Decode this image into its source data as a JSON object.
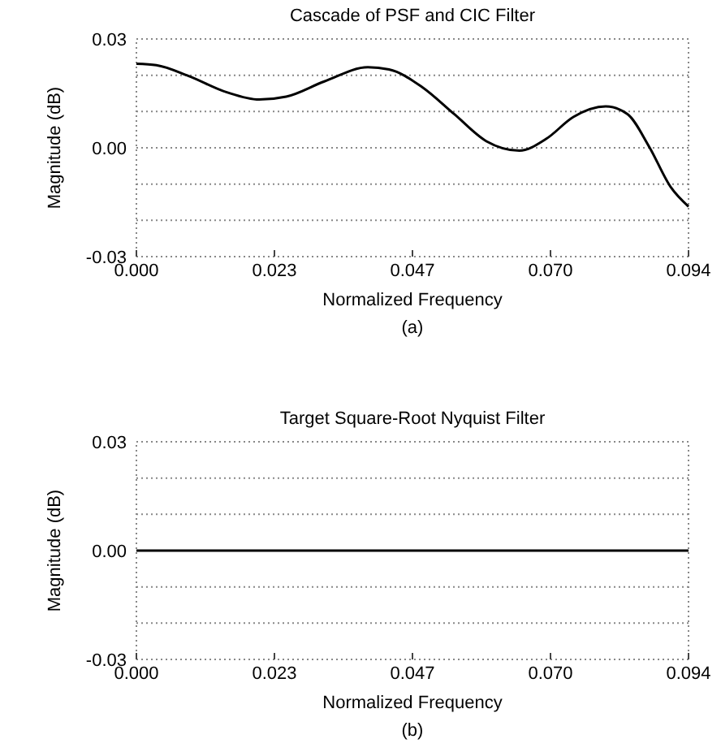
{
  "chart_data": [
    {
      "type": "line",
      "title": "Cascade of PSF and CIC Filter",
      "xlabel": "Normalized Frequency",
      "ylabel": "Magnitude (dB)",
      "annotations": [
        "(a)"
      ],
      "xlim": [
        0,
        0.094
      ],
      "ylim": [
        -0.03,
        0.03
      ],
      "xticks": [
        {
          "value": 0,
          "label": "0.000"
        },
        {
          "value": 0.0235,
          "label": "0.023"
        },
        {
          "value": 0.047,
          "label": "0.047"
        },
        {
          "value": 0.0705,
          "label": "0.070"
        },
        {
          "value": 0.094,
          "label": "0.094"
        }
      ],
      "yticks": [
        {
          "value": -0.03,
          "label": "-0.03"
        },
        {
          "value": -0.02,
          "label": null
        },
        {
          "value": -0.01,
          "label": null
        },
        {
          "value": 0,
          "label": "0.00"
        },
        {
          "value": 0.01,
          "label": null
        },
        {
          "value": 0.02,
          "label": null
        },
        {
          "value": 0.03,
          "label": "0.03"
        }
      ],
      "grid": "y",
      "line_style": "solid",
      "series": [
        {
          "color": "#000000",
          "x": [
            0,
            0.0034,
            0.0089,
            0.0154,
            0.0209,
            0.0255,
            0.032,
            0.0394,
            0.043,
            0.0486,
            0.0541,
            0.0596,
            0.0652,
            0.0698,
            0.0744,
            0.0799,
            0.0836,
            0.0873,
            0.091,
            0.094
          ],
          "values": [
            0.0232,
            0.0228,
            0.0198,
            0.0153,
            0.0133,
            0.0141,
            0.0183,
            0.0222,
            0.0216,
            0.0168,
            0.0093,
            0.0018,
            -0.0008,
            0.0025,
            0.0085,
            0.0114,
            0.0093,
            0.0003,
            -0.0109,
            -0.0162
          ]
        }
      ]
    },
    {
      "type": "line",
      "title": "Target Square-Root Nyquist Filter",
      "xlabel": "Normalized Frequency",
      "ylabel": "Magnitude (dB)",
      "annotations": [
        "(b)"
      ],
      "xlim": [
        0,
        0.094
      ],
      "ylim": [
        -0.03,
        0.03
      ],
      "xticks": [
        {
          "value": 0,
          "label": "0.000"
        },
        {
          "value": 0.0235,
          "label": "0.023"
        },
        {
          "value": 0.047,
          "label": "0.047"
        },
        {
          "value": 0.0705,
          "label": "0.070"
        },
        {
          "value": 0.094,
          "label": "0.094"
        }
      ],
      "yticks": [
        {
          "value": -0.03,
          "label": "-0.03"
        },
        {
          "value": -0.02,
          "label": null
        },
        {
          "value": -0.01,
          "label": null
        },
        {
          "value": 0,
          "label": "0.00"
        },
        {
          "value": 0.01,
          "label": null
        },
        {
          "value": 0.02,
          "label": null
        },
        {
          "value": 0.03,
          "label": "0.03"
        }
      ],
      "grid": "y",
      "line_style": "solid",
      "series": [
        {
          "color": "#000000",
          "x": [
            0,
            0.094
          ],
          "values": [
            0,
            0
          ]
        }
      ]
    }
  ]
}
